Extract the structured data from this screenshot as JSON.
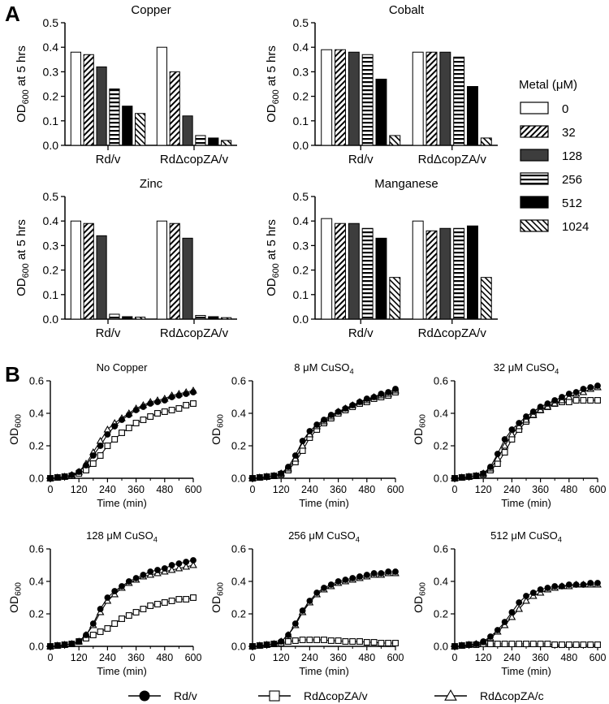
{
  "panel_labels": {
    "a": "A",
    "b": "B"
  },
  "bar_legend": {
    "title": "Metal (μM)",
    "items": [
      {
        "label": "0",
        "pattern": "white"
      },
      {
        "label": "32",
        "pattern": "diag"
      },
      {
        "label": "128",
        "pattern": "dark"
      },
      {
        "label": "256",
        "pattern": "hstripe"
      },
      {
        "label": "512",
        "pattern": "black"
      },
      {
        "label": "1024",
        "pattern": "diag2"
      }
    ]
  },
  "line_legend": [
    {
      "label": "Rd/v",
      "marker": "circle"
    },
    {
      "label": "RdΔcopZA/v",
      "marker": "square"
    },
    {
      "label": "RdΔcopZA/c",
      "marker": "triangle"
    }
  ],
  "colors": {
    "dark_bar": "#3d3d3d",
    "black": "#000000",
    "background": "#ffffff"
  },
  "chart_data": [
    {
      "type": "bar",
      "panel": "A",
      "title": "Copper",
      "ylabel": "OD600 at 5 hrs",
      "ylim": [
        0,
        0.5
      ],
      "yticks": [
        "0.0",
        "0.1",
        "0.2",
        "0.3",
        "0.4",
        "0.5"
      ],
      "categories": [
        "Rd/v",
        "RdΔcopZA/v"
      ],
      "series": [
        {
          "name": "0",
          "values": [
            0.38,
            0.4
          ]
        },
        {
          "name": "32",
          "values": [
            0.37,
            0.3
          ]
        },
        {
          "name": "128",
          "values": [
            0.32,
            0.12
          ]
        },
        {
          "name": "256",
          "values": [
            0.23,
            0.04
          ]
        },
        {
          "name": "512",
          "values": [
            0.16,
            0.03
          ]
        },
        {
          "name": "1024",
          "values": [
            0.13,
            0.02
          ]
        }
      ]
    },
    {
      "type": "bar",
      "panel": "A",
      "title": "Cobalt",
      "ylabel": "OD600 at 5 hrs",
      "ylim": [
        0,
        0.5
      ],
      "yticks": [
        "0.0",
        "0.1",
        "0.2",
        "0.3",
        "0.4",
        "0.5"
      ],
      "categories": [
        "Rd/v",
        "RdΔcopZA/v"
      ],
      "series": [
        {
          "name": "0",
          "values": [
            0.39,
            0.38
          ]
        },
        {
          "name": "32",
          "values": [
            0.39,
            0.38
          ]
        },
        {
          "name": "128",
          "values": [
            0.38,
            0.38
          ]
        },
        {
          "name": "256",
          "values": [
            0.37,
            0.36
          ]
        },
        {
          "name": "512",
          "values": [
            0.27,
            0.24
          ]
        },
        {
          "name": "1024",
          "values": [
            0.04,
            0.03
          ]
        }
      ]
    },
    {
      "type": "bar",
      "panel": "A",
      "title": "Zinc",
      "ylabel": "OD600 at 5 hrs",
      "ylim": [
        0,
        0.5
      ],
      "yticks": [
        "0.0",
        "0.1",
        "0.2",
        "0.3",
        "0.4",
        "0.5"
      ],
      "categories": [
        "Rd/v",
        "RdΔcopZA/v"
      ],
      "series": [
        {
          "name": "0",
          "values": [
            0.4,
            0.4
          ]
        },
        {
          "name": "32",
          "values": [
            0.39,
            0.39
          ]
        },
        {
          "name": "128",
          "values": [
            0.34,
            0.33
          ]
        },
        {
          "name": "256",
          "values": [
            0.02,
            0.015
          ]
        },
        {
          "name": "512",
          "values": [
            0.01,
            0.01
          ]
        },
        {
          "name": "1024",
          "values": [
            0.008,
            0.006
          ]
        }
      ]
    },
    {
      "type": "bar",
      "panel": "A",
      "title": "Manganese",
      "ylabel": "OD600 at 5 hrs",
      "ylim": [
        0,
        0.5
      ],
      "yticks": [
        "0.0",
        "0.1",
        "0.2",
        "0.3",
        "0.4",
        "0.5"
      ],
      "categories": [
        "Rd/v",
        "RdΔcopZA/v"
      ],
      "series": [
        {
          "name": "0",
          "values": [
            0.41,
            0.4
          ]
        },
        {
          "name": "32",
          "values": [
            0.39,
            0.36
          ]
        },
        {
          "name": "128",
          "values": [
            0.39,
            0.37
          ]
        },
        {
          "name": "256",
          "values": [
            0.37,
            0.37
          ]
        },
        {
          "name": "512",
          "values": [
            0.33,
            0.38
          ]
        },
        {
          "name": "1024",
          "values": [
            0.17,
            0.17
          ]
        }
      ]
    },
    {
      "type": "line",
      "panel": "B",
      "title": "No Copper",
      "xlabel": "Time (min)",
      "ylabel": "OD600",
      "xlim": [
        0,
        600
      ],
      "ylim": [
        0,
        0.6
      ],
      "xticks": [
        "0",
        "120",
        "240",
        "360",
        "480",
        "600"
      ],
      "yticks": [
        "0.0",
        "0.2",
        "0.4",
        "0.6"
      ],
      "x": [
        0,
        30,
        60,
        90,
        120,
        150,
        180,
        210,
        240,
        270,
        300,
        330,
        360,
        390,
        420,
        450,
        480,
        510,
        540,
        570,
        600
      ],
      "series": [
        {
          "name": "Rd/v",
          "values": [
            0.0,
            0.005,
            0.01,
            0.02,
            0.04,
            0.08,
            0.14,
            0.2,
            0.27,
            0.32,
            0.36,
            0.39,
            0.42,
            0.44,
            0.46,
            0.47,
            0.48,
            0.5,
            0.51,
            0.52,
            0.53
          ]
        },
        {
          "name": "RdΔcopZA/v",
          "values": [
            0.0,
            0.005,
            0.01,
            0.015,
            0.03,
            0.05,
            0.09,
            0.14,
            0.2,
            0.24,
            0.28,
            0.31,
            0.34,
            0.36,
            0.38,
            0.4,
            0.41,
            0.42,
            0.43,
            0.45,
            0.46
          ]
        },
        {
          "name": "RdΔcopZA/c",
          "values": [
            0.0,
            0.005,
            0.01,
            0.02,
            0.04,
            0.09,
            0.16,
            0.23,
            0.3,
            0.34,
            0.37,
            0.4,
            0.43,
            0.45,
            0.47,
            0.48,
            0.49,
            0.51,
            0.52,
            0.53,
            0.54
          ]
        }
      ]
    },
    {
      "type": "line",
      "panel": "B",
      "title": "8 μM CuSO4",
      "xlabel": "Time (min)",
      "ylabel": "OD600",
      "xlim": [
        0,
        600
      ],
      "ylim": [
        0,
        0.6
      ],
      "xticks": [
        "0",
        "120",
        "240",
        "360",
        "480",
        "600"
      ],
      "yticks": [
        "0.0",
        "0.2",
        "0.4",
        "0.6"
      ],
      "x": [
        0,
        30,
        60,
        90,
        120,
        150,
        180,
        210,
        240,
        270,
        300,
        330,
        360,
        390,
        420,
        450,
        480,
        510,
        540,
        570,
        600
      ],
      "series": [
        {
          "name": "Rd/v",
          "values": [
            0.0,
            0.005,
            0.01,
            0.015,
            0.03,
            0.07,
            0.14,
            0.23,
            0.29,
            0.33,
            0.36,
            0.39,
            0.41,
            0.43,
            0.45,
            0.47,
            0.49,
            0.5,
            0.52,
            0.53,
            0.55
          ]
        },
        {
          "name": "RdΔcopZA/v",
          "values": [
            0.0,
            0.005,
            0.01,
            0.015,
            0.025,
            0.05,
            0.1,
            0.17,
            0.25,
            0.3,
            0.34,
            0.37,
            0.4,
            0.42,
            0.44,
            0.46,
            0.47,
            0.49,
            0.5,
            0.51,
            0.53
          ]
        },
        {
          "name": "RdΔcopZA/c",
          "values": [
            0.0,
            0.005,
            0.01,
            0.015,
            0.03,
            0.06,
            0.12,
            0.2,
            0.27,
            0.32,
            0.35,
            0.38,
            0.41,
            0.43,
            0.45,
            0.47,
            0.48,
            0.5,
            0.51,
            0.52,
            0.54
          ]
        }
      ]
    },
    {
      "type": "line",
      "panel": "B",
      "title": "32 μM CuSO4",
      "xlabel": "Time (min)",
      "ylabel": "OD600",
      "xlim": [
        0,
        600
      ],
      "ylim": [
        0,
        0.6
      ],
      "xticks": [
        "0",
        "120",
        "240",
        "360",
        "480",
        "600"
      ],
      "yticks": [
        "0.0",
        "0.2",
        "0.4",
        "0.6"
      ],
      "x": [
        0,
        30,
        60,
        90,
        120,
        150,
        180,
        210,
        240,
        270,
        300,
        330,
        360,
        390,
        420,
        450,
        480,
        510,
        540,
        570,
        600
      ],
      "series": [
        {
          "name": "Rd/v",
          "values": [
            0.0,
            0.005,
            0.01,
            0.015,
            0.03,
            0.07,
            0.15,
            0.24,
            0.3,
            0.34,
            0.38,
            0.41,
            0.44,
            0.46,
            0.48,
            0.5,
            0.52,
            0.53,
            0.55,
            0.56,
            0.57
          ]
        },
        {
          "name": "RdΔcopZA/v",
          "values": [
            0.0,
            0.005,
            0.01,
            0.015,
            0.025,
            0.05,
            0.09,
            0.16,
            0.24,
            0.3,
            0.35,
            0.39,
            0.42,
            0.44,
            0.46,
            0.47,
            0.47,
            0.48,
            0.48,
            0.48,
            0.48
          ]
        },
        {
          "name": "RdΔcopZA/c",
          "values": [
            0.0,
            0.005,
            0.01,
            0.015,
            0.03,
            0.06,
            0.12,
            0.2,
            0.27,
            0.32,
            0.36,
            0.39,
            0.42,
            0.44,
            0.46,
            0.48,
            0.5,
            0.52,
            0.53,
            0.55,
            0.56
          ]
        }
      ]
    },
    {
      "type": "line",
      "panel": "B",
      "title": "128 μM CuSO4",
      "xlabel": "Time (min)",
      "ylabel": "OD600",
      "xlim": [
        0,
        600
      ],
      "ylim": [
        0,
        0.6
      ],
      "xticks": [
        "0",
        "120",
        "240",
        "360",
        "480",
        "600"
      ],
      "yticks": [
        "0.0",
        "0.2",
        "0.4",
        "0.6"
      ],
      "x": [
        0,
        30,
        60,
        90,
        120,
        150,
        180,
        210,
        240,
        270,
        300,
        330,
        360,
        390,
        420,
        450,
        480,
        510,
        540,
        570,
        600
      ],
      "series": [
        {
          "name": "Rd/v",
          "values": [
            0.0,
            0.005,
            0.01,
            0.015,
            0.03,
            0.07,
            0.14,
            0.23,
            0.3,
            0.34,
            0.37,
            0.4,
            0.42,
            0.44,
            0.46,
            0.47,
            0.48,
            0.5,
            0.51,
            0.52,
            0.53
          ]
        },
        {
          "name": "RdΔcopZA/v",
          "values": [
            0.0,
            0.005,
            0.01,
            0.015,
            0.03,
            0.05,
            0.07,
            0.09,
            0.11,
            0.14,
            0.17,
            0.19,
            0.21,
            0.23,
            0.25,
            0.26,
            0.27,
            0.28,
            0.29,
            0.29,
            0.3
          ]
        },
        {
          "name": "RdΔcopZA/c",
          "values": [
            0.0,
            0.005,
            0.01,
            0.015,
            0.03,
            0.07,
            0.13,
            0.21,
            0.28,
            0.32,
            0.36,
            0.39,
            0.41,
            0.43,
            0.44,
            0.45,
            0.46,
            0.47,
            0.48,
            0.49,
            0.5
          ]
        }
      ]
    },
    {
      "type": "line",
      "panel": "B",
      "title": "256 μM CuSO4",
      "xlabel": "Time (min)",
      "ylabel": "OD600",
      "xlim": [
        0,
        600
      ],
      "ylim": [
        0,
        0.6
      ],
      "xticks": [
        "0",
        "120",
        "240",
        "360",
        "480",
        "600"
      ],
      "yticks": [
        "0.0",
        "0.2",
        "0.4",
        "0.6"
      ],
      "x": [
        0,
        30,
        60,
        90,
        120,
        150,
        180,
        210,
        240,
        270,
        300,
        330,
        360,
        390,
        420,
        450,
        480,
        510,
        540,
        570,
        600
      ],
      "series": [
        {
          "name": "Rd/v",
          "values": [
            0.0,
            0.005,
            0.01,
            0.015,
            0.03,
            0.07,
            0.14,
            0.22,
            0.28,
            0.33,
            0.36,
            0.38,
            0.4,
            0.41,
            0.42,
            0.43,
            0.44,
            0.45,
            0.45,
            0.46,
            0.46
          ]
        },
        {
          "name": "RdΔcopZA/v",
          "values": [
            0.0,
            0.005,
            0.01,
            0.015,
            0.02,
            0.03,
            0.035,
            0.04,
            0.04,
            0.04,
            0.04,
            0.035,
            0.035,
            0.03,
            0.03,
            0.03,
            0.025,
            0.025,
            0.02,
            0.02,
            0.02
          ]
        },
        {
          "name": "RdΔcopZA/c",
          "values": [
            0.0,
            0.005,
            0.01,
            0.015,
            0.03,
            0.07,
            0.13,
            0.21,
            0.27,
            0.32,
            0.35,
            0.37,
            0.39,
            0.4,
            0.41,
            0.42,
            0.43,
            0.44,
            0.44,
            0.45,
            0.45
          ]
        }
      ]
    },
    {
      "type": "line",
      "panel": "B",
      "title": "512 μM CuSO4",
      "xlabel": "Time (min)",
      "ylabel": "OD600",
      "xlim": [
        0,
        600
      ],
      "ylim": [
        0,
        0.6
      ],
      "xticks": [
        "0",
        "120",
        "240",
        "360",
        "480",
        "600"
      ],
      "yticks": [
        "0.0",
        "0.2",
        "0.4",
        "0.6"
      ],
      "x": [
        0,
        30,
        60,
        90,
        120,
        150,
        180,
        210,
        240,
        270,
        300,
        330,
        360,
        390,
        420,
        450,
        480,
        510,
        540,
        570,
        600
      ],
      "series": [
        {
          "name": "Rd/v",
          "values": [
            0.0,
            0.005,
            0.01,
            0.015,
            0.03,
            0.06,
            0.1,
            0.15,
            0.21,
            0.27,
            0.31,
            0.33,
            0.35,
            0.36,
            0.37,
            0.37,
            0.38,
            0.38,
            0.38,
            0.39,
            0.39
          ]
        },
        {
          "name": "RdΔcopZA/v",
          "values": [
            0.0,
            0.005,
            0.01,
            0.01,
            0.015,
            0.015,
            0.015,
            0.015,
            0.015,
            0.015,
            0.015,
            0.015,
            0.015,
            0.015,
            0.01,
            0.01,
            0.01,
            0.01,
            0.01,
            0.01,
            0.01
          ]
        },
        {
          "name": "RdΔcopZA/c",
          "values": [
            0.0,
            0.005,
            0.01,
            0.015,
            0.025,
            0.05,
            0.09,
            0.13,
            0.18,
            0.23,
            0.28,
            0.31,
            0.33,
            0.35,
            0.36,
            0.37,
            0.37,
            0.38,
            0.38,
            0.38,
            0.38
          ]
        }
      ]
    }
  ]
}
